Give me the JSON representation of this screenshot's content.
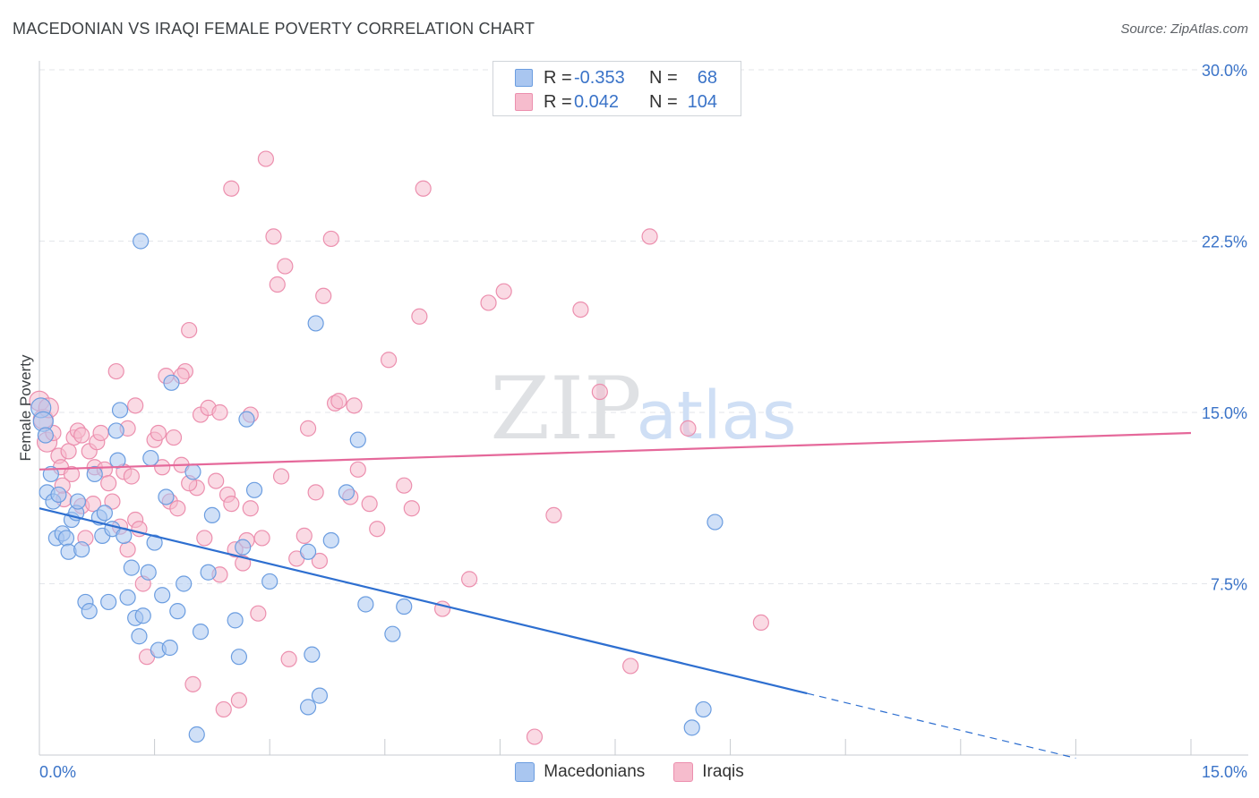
{
  "title": "MACEDONIAN VS IRAQI FEMALE POVERTY CORRELATION CHART",
  "source": "Source: ZipAtlas.com",
  "watermark": {
    "zip": "ZIP",
    "atlas": "atlas"
  },
  "colors": {
    "macedonians_fill": "#a9c6f0",
    "macedonians_stroke": "#6b9de0",
    "macedonians_line": "#2e6fd0",
    "iraqis_fill": "#f6bccd",
    "iraqis_stroke": "#ec8fae",
    "iraqis_line": "#e5689a",
    "axis_value_text": "#3a73c8"
  },
  "legend": {
    "r_label": "R =",
    "n_label": "N =",
    "rows": [
      {
        "series": "Macedonians",
        "r": "-0.353",
        "n": "68"
      },
      {
        "series": "Iraqis",
        "r": "0.042",
        "n": "104"
      }
    ]
  },
  "chart_data": {
    "type": "scatter",
    "title": "MACEDONIAN VS IRAQI FEMALE POVERTY CORRELATION CHART",
    "xlabel": "",
    "ylabel": "Female Poverty",
    "xlim": [
      0,
      15
    ],
    "ylim": [
      0,
      30
    ],
    "x_tick_labels": [
      "0.0%",
      "15.0%"
    ],
    "y_ticks": [
      7.5,
      15.0,
      22.5,
      30.0
    ],
    "y_tick_labels": [
      "7.5%",
      "15.0%",
      "22.5%",
      "30.0%"
    ],
    "grid": true,
    "legend_position": "top-center",
    "series": [
      {
        "name": "Macedonians",
        "trend": {
          "x0": 0,
          "y0": 10.8,
          "x1": 10.0,
          "y1": 2.7,
          "dashed_to_x": 13.5
        },
        "points": [
          [
            0.02,
            15.2
          ],
          [
            0.05,
            14.6
          ],
          [
            0.08,
            14.0
          ],
          [
            0.1,
            11.5
          ],
          [
            0.15,
            12.3
          ],
          [
            0.18,
            11.1
          ],
          [
            0.22,
            9.5
          ],
          [
            0.25,
            11.4
          ],
          [
            0.3,
            9.7
          ],
          [
            0.35,
            9.5
          ],
          [
            0.38,
            8.9
          ],
          [
            0.42,
            10.3
          ],
          [
            0.48,
            10.6
          ],
          [
            0.5,
            11.1
          ],
          [
            0.55,
            9.0
          ],
          [
            0.6,
            6.7
          ],
          [
            0.65,
            6.3
          ],
          [
            0.72,
            12.3
          ],
          [
            0.78,
            10.4
          ],
          [
            0.82,
            9.6
          ],
          [
            0.85,
            10.6
          ],
          [
            0.9,
            6.7
          ],
          [
            0.95,
            9.9
          ],
          [
            1.0,
            14.2
          ],
          [
            1.02,
            12.9
          ],
          [
            1.05,
            15.1
          ],
          [
            1.1,
            9.6
          ],
          [
            1.15,
            6.9
          ],
          [
            1.2,
            8.2
          ],
          [
            1.25,
            6.0
          ],
          [
            1.3,
            5.2
          ],
          [
            1.35,
            6.1
          ],
          [
            1.42,
            8.0
          ],
          [
            1.45,
            13.0
          ],
          [
            1.5,
            9.3
          ],
          [
            1.55,
            4.6
          ],
          [
            1.6,
            7.0
          ],
          [
            1.65,
            11.3
          ],
          [
            1.7,
            4.7
          ],
          [
            1.72,
            16.3
          ],
          [
            1.8,
            6.3
          ],
          [
            1.88,
            7.5
          ],
          [
            2.0,
            12.4
          ],
          [
            2.05,
            0.9
          ],
          [
            2.1,
            5.4
          ],
          [
            2.2,
            8.0
          ],
          [
            2.25,
            10.5
          ],
          [
            2.55,
            5.9
          ],
          [
            2.6,
            4.3
          ],
          [
            2.7,
            14.7
          ],
          [
            2.8,
            11.6
          ],
          [
            3.0,
            7.6
          ],
          [
            3.5,
            2.1
          ],
          [
            3.55,
            4.4
          ],
          [
            3.65,
            2.6
          ],
          [
            3.8,
            9.4
          ],
          [
            4.0,
            11.5
          ],
          [
            4.15,
            13.8
          ],
          [
            4.25,
            6.6
          ],
          [
            4.6,
            5.3
          ],
          [
            4.75,
            6.5
          ],
          [
            8.5,
            1.2
          ],
          [
            8.65,
            2.0
          ],
          [
            8.8,
            10.2
          ],
          [
            1.32,
            22.5
          ],
          [
            3.6,
            18.9
          ],
          [
            2.65,
            9.1
          ],
          [
            3.5,
            8.9
          ]
        ]
      },
      {
        "name": "Iraqis",
        "trend": {
          "x0": 0,
          "y0": 12.5,
          "x1": 15.0,
          "y1": 14.1
        },
        "points": [
          [
            0.0,
            15.5
          ],
          [
            0.05,
            14.7
          ],
          [
            0.1,
            13.7
          ],
          [
            0.12,
            15.2
          ],
          [
            0.18,
            14.1
          ],
          [
            0.25,
            13.1
          ],
          [
            0.28,
            12.6
          ],
          [
            0.32,
            11.2
          ],
          [
            0.38,
            13.3
          ],
          [
            0.42,
            12.3
          ],
          [
            0.45,
            13.9
          ],
          [
            0.5,
            14.2
          ],
          [
            0.55,
            10.9
          ],
          [
            0.6,
            9.5
          ],
          [
            0.65,
            13.3
          ],
          [
            0.72,
            12.6
          ],
          [
            0.75,
            13.7
          ],
          [
            0.8,
            14.1
          ],
          [
            0.85,
            12.5
          ],
          [
            0.9,
            11.9
          ],
          [
            0.95,
            11.1
          ],
          [
            1.0,
            16.8
          ],
          [
            1.05,
            10.0
          ],
          [
            1.1,
            12.4
          ],
          [
            1.15,
            14.3
          ],
          [
            1.2,
            12.2
          ],
          [
            1.25,
            10.3
          ],
          [
            1.3,
            9.9
          ],
          [
            1.35,
            7.5
          ],
          [
            1.4,
            4.3
          ],
          [
            1.5,
            13.8
          ],
          [
            1.55,
            14.1
          ],
          [
            1.6,
            12.6
          ],
          [
            1.65,
            16.6
          ],
          [
            1.7,
            11.1
          ],
          [
            1.8,
            10.8
          ],
          [
            1.85,
            12.7
          ],
          [
            1.9,
            16.8
          ],
          [
            1.95,
            18.6
          ],
          [
            2.0,
            3.1
          ],
          [
            2.05,
            11.7
          ],
          [
            2.1,
            14.9
          ],
          [
            2.15,
            9.5
          ],
          [
            2.2,
            15.2
          ],
          [
            2.3,
            12.0
          ],
          [
            2.35,
            7.9
          ],
          [
            2.4,
            2.0
          ],
          [
            2.45,
            11.4
          ],
          [
            2.5,
            11.0
          ],
          [
            2.55,
            9.0
          ],
          [
            2.6,
            2.4
          ],
          [
            2.65,
            8.4
          ],
          [
            2.7,
            9.4
          ],
          [
            2.75,
            10.8
          ],
          [
            2.85,
            6.2
          ],
          [
            2.95,
            26.1
          ],
          [
            3.05,
            22.7
          ],
          [
            3.1,
            20.6
          ],
          [
            3.2,
            21.4
          ],
          [
            3.25,
            4.2
          ],
          [
            3.35,
            8.6
          ],
          [
            3.5,
            14.3
          ],
          [
            3.6,
            11.5
          ],
          [
            3.65,
            8.5
          ],
          [
            3.7,
            20.1
          ],
          [
            3.8,
            22.6
          ],
          [
            3.85,
            15.4
          ],
          [
            3.9,
            15.5
          ],
          [
            4.05,
            11.3
          ],
          [
            4.1,
            15.3
          ],
          [
            4.3,
            11.0
          ],
          [
            4.4,
            9.9
          ],
          [
            4.55,
            17.3
          ],
          [
            4.75,
            11.8
          ],
          [
            4.85,
            10.8
          ],
          [
            4.95,
            19.2
          ],
          [
            5.0,
            24.8
          ],
          [
            5.25,
            6.4
          ],
          [
            5.6,
            7.7
          ],
          [
            5.85,
            19.8
          ],
          [
            6.05,
            20.3
          ],
          [
            6.45,
            0.8
          ],
          [
            6.7,
            10.5
          ],
          [
            7.05,
            19.5
          ],
          [
            7.3,
            15.9
          ],
          [
            7.7,
            3.9
          ],
          [
            7.95,
            22.7
          ],
          [
            8.45,
            14.3
          ],
          [
            9.4,
            5.8
          ],
          [
            2.5,
            24.8
          ],
          [
            2.35,
            15.0
          ],
          [
            1.85,
            16.6
          ],
          [
            1.75,
            13.9
          ],
          [
            1.95,
            11.9
          ],
          [
            0.7,
            11.0
          ],
          [
            1.15,
            9.0
          ],
          [
            2.9,
            9.5
          ],
          [
            0.55,
            14.0
          ],
          [
            0.3,
            11.8
          ],
          [
            3.45,
            9.6
          ],
          [
            4.15,
            12.5
          ],
          [
            3.15,
            12.2
          ],
          [
            2.75,
            14.9
          ],
          [
            1.25,
            15.3
          ]
        ]
      }
    ]
  }
}
